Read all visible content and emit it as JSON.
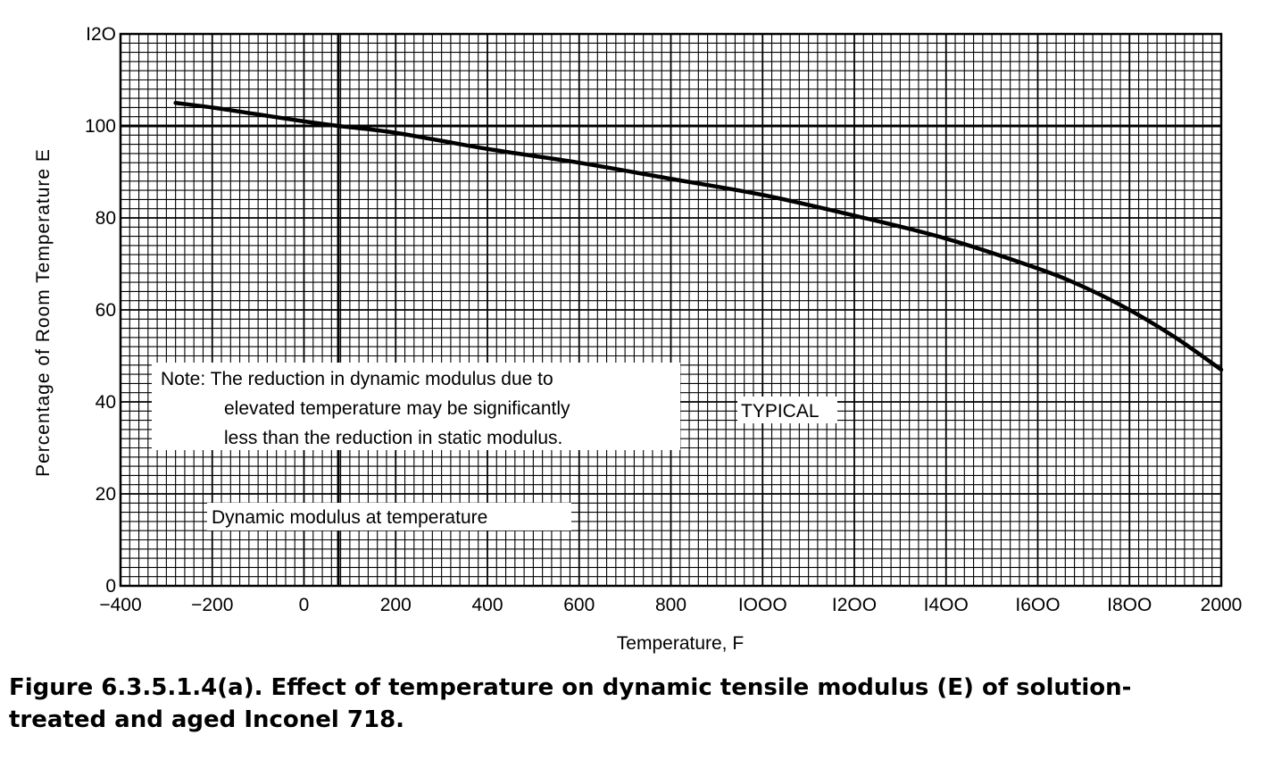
{
  "chart_data": {
    "type": "line",
    "xlabel": "Temperature, F",
    "ylabel": "Percentage of Room Temperature E",
    "xlim": [
      -400,
      2000
    ],
    "ylim": [
      0,
      120
    ],
    "x_ticks": [
      "−400",
      "−200",
      "0",
      "200",
      "400",
      "600",
      "800",
      "IOOO",
      "I2OO",
      "I4OO",
      "I6OO",
      "I8OO",
      "2000"
    ],
    "y_ticks": [
      "0",
      "20",
      "40",
      "60",
      "80",
      "100",
      "I2O"
    ],
    "grid": true,
    "reference_lines": [
      {
        "axis": "y",
        "value": 100
      },
      {
        "axis": "x",
        "value": 75
      }
    ],
    "series": [
      {
        "x": [
          -280,
          -200,
          -100,
          0,
          75,
          200,
          400,
          600,
          800,
          1000,
          1200,
          1400,
          1600,
          1700,
          1800,
          1900,
          2000
        ],
        "y": [
          105,
          104,
          102.5,
          101,
          100,
          98.5,
          95,
          92,
          88.5,
          85,
          80.5,
          75.5,
          69,
          65,
          60,
          54,
          47
        ]
      }
    ],
    "annotations": {
      "note_lines": [
        "Note: The reduction in dynamic modulus due to",
        "elevated temperature may be significantly",
        "less than the reduction in static modulus."
      ],
      "typical": "TYPICAL",
      "curve_label": "Dynamic modulus at temperature"
    }
  },
  "caption_lines": [
    "Figure 6.3.5.1.4(a).  Effect of temperature on dynamic tensile modulus (E) of solution-",
    "treated and aged Inconel 718."
  ]
}
